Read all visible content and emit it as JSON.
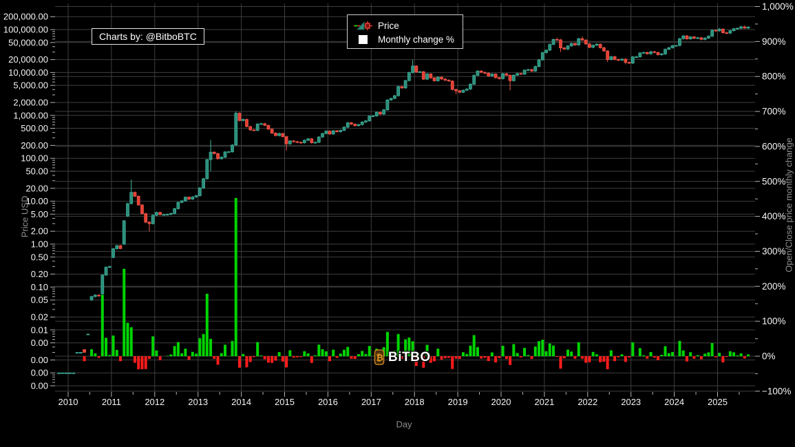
{
  "credit": {
    "text": "Charts by: @BitboBTC"
  },
  "legend": {
    "items": [
      {
        "label": "Price",
        "icon": "candlestick-icon"
      },
      {
        "label": "Monthly change %",
        "icon": "white-square-icon"
      }
    ]
  },
  "watermark": {
    "text": "BiTBO",
    "icon": "bitcoin-badge-icon"
  },
  "colors": {
    "background": "#000000",
    "grid": "#3f3f3f",
    "tick_text": "#f5f5f5",
    "tick_mark": "#b5b5b5",
    "axis_title": "#8f8f8f",
    "candle_up": "#2c8e7b",
    "candle_up_line": "#3fb39c",
    "candle_down": "#e64034",
    "candle_down_line": "#f2584c",
    "bar_up": "#00d400",
    "bar_down": "#ff1c1c",
    "legend_border": "#cfcfcf",
    "watermark_orange": "#e79b23"
  },
  "chart_data": {
    "type": "candlestick+bar",
    "title": "",
    "x_axis": {
      "title": "Day",
      "years": [
        2010,
        2011,
        2012,
        2013,
        2014,
        2015,
        2016,
        2017,
        2018,
        2019,
        2020,
        2021,
        2022,
        2023,
        2024,
        2025
      ]
    },
    "left_axis": {
      "title": "Price USD",
      "scale": "log",
      "ticks": [
        {
          "v": 200000,
          "label": "200,000.00"
        },
        {
          "v": 100000,
          "label": "100,000.00"
        },
        {
          "v": 50000,
          "label": "50,000.00"
        },
        {
          "v": 20000,
          "label": "20,000.00"
        },
        {
          "v": 10000,
          "label": "10,000.00"
        },
        {
          "v": 5000,
          "label": "5,000.00"
        },
        {
          "v": 2000,
          "label": "2,000.00"
        },
        {
          "v": 1000,
          "label": "1,000.00"
        },
        {
          "v": 500,
          "label": "500.00"
        },
        {
          "v": 200,
          "label": "200.00"
        },
        {
          "v": 100,
          "label": "100.00"
        },
        {
          "v": 50,
          "label": "50.00"
        },
        {
          "v": 20,
          "label": "20.00"
        },
        {
          "v": 10,
          "label": "10.00"
        },
        {
          "v": 5,
          "label": "5.00"
        },
        {
          "v": 2,
          "label": "2.00"
        },
        {
          "v": 1,
          "label": "1.00"
        },
        {
          "v": 0.5,
          "label": "0.50"
        },
        {
          "v": 0.2,
          "label": "0.20"
        },
        {
          "v": 0.1,
          "label": "0.10"
        },
        {
          "v": 0.05,
          "label": "0.05"
        },
        {
          "v": 0.02,
          "label": "0.02"
        },
        {
          "v": 0.01,
          "label": "0.01"
        },
        {
          "v": 0.005,
          "label": "0.00"
        },
        {
          "v": 0.002,
          "label": "0.00"
        },
        {
          "v": 0.001,
          "label": "0.00"
        },
        {
          "v": 0.0005,
          "label": "0.00"
        }
      ]
    },
    "right_axis": {
      "title": "Open/Close price monthly change",
      "ticks": [
        {
          "v": 1000,
          "label": "1,000%"
        },
        {
          "v": 900,
          "label": "900%"
        },
        {
          "v": 800,
          "label": "800%"
        },
        {
          "v": 700,
          "label": "700%"
        },
        {
          "v": 600,
          "label": "600%"
        },
        {
          "v": 500,
          "label": "500%"
        },
        {
          "v": 400,
          "label": "400%"
        },
        {
          "v": 300,
          "label": "300%"
        },
        {
          "v": 200,
          "label": "200%"
        },
        {
          "v": 100,
          "label": "100%"
        },
        {
          "v": 0,
          "label": "0%"
        },
        {
          "v": -100,
          "label": "−100%"
        }
      ]
    },
    "series": [
      {
        "name": "Price",
        "type": "candlestick",
        "start_month": "2009-10",
        "closes": [
          0.001,
          0.001,
          0.001,
          0.001,
          0.001,
          0.003,
          0.003,
          0.003,
          0.008,
          0.06,
          0.065,
          0.062,
          0.19,
          0.29,
          0.3,
          0.78,
          0.92,
          0.79,
          3.5,
          8.8,
          16.1,
          13.08,
          8.18,
          5.14,
          3.25,
          3.0,
          4.7,
          5.48,
          4.87,
          4.88,
          4.94,
          5.19,
          6.7,
          9.4,
          10.2,
          12.4,
          11.18,
          12.56,
          13.45,
          20.41,
          33.38,
          93.03,
          139.23,
          128.8,
          97.51,
          106.21,
          141.0,
          141.9,
          204.0,
          1127.45,
          757.5,
          805.94,
          550.0,
          458.79,
          447.61,
          627.91,
          641.11,
          585.84,
          478.69,
          386.94,
          338.32,
          378.05,
          320.19,
          217.46,
          254.26,
          244.22,
          235.94,
          230.23,
          263.07,
          284.65,
          230.06,
          236.06,
          314.17,
          377.32,
          430.57,
          368.77,
          437.7,
          416.73,
          448.32,
          531.39,
          673.33,
          624.68,
          575.47,
          609.74,
          700.97,
          745.69,
          963.74,
          970.4,
          1179.97,
          1071.79,
          1347.89,
          2286.41,
          2480.84,
          2875.34,
          4703.39,
          4360.62,
          6468.4,
          9916.54,
          14156.4,
          10221.1,
          10397.9,
          6973.53,
          9240.55,
          7494.17,
          6404.0,
          7780.44,
          7037.58,
          6625.56,
          6317.61,
          4017.27,
          3742.7,
          3457.79,
          3854.82,
          4105.4,
          5350.73,
          8574.5,
          10817.16,
          10085.63,
          9630.66,
          8308.3,
          9199.58,
          7569.63,
          7193.6,
          9350.53,
          8599.51,
          6438.64,
          8658.55,
          9461.06,
          9137.99,
          11323.47,
          11680.82,
          10784.49,
          13781.0,
          19713.94,
          29001.72,
          33114.36,
          45137.77,
          58918.83,
          57750.18,
          37332.86,
          35040.84,
          41626.2,
          47166.69,
          43790.89,
          61318.96,
          56907.96,
          46306.45,
          38483.13,
          43193.23,
          45538.68,
          37714.88,
          31792.31,
          19985.62,
          23336.9,
          20049.76,
          19431.79,
          20495.77,
          17168.57,
          16547.5,
          23139.28,
          23147.35,
          28478.48,
          29268.81,
          27219.66,
          30477.25,
          29230.11,
          25931.47,
          26967.92,
          34667.78,
          37718.01,
          42265.19,
          42580.0,
          61198.38,
          71333.65,
          60636.86,
          67491.41,
          62678.29,
          64619.25,
          58969.9,
          63329.5,
          70215.19,
          96449.05,
          93429.2,
          102405.0,
          84373.01,
          82548.91,
          94207.31,
          104638.09,
          107135.34,
          115758.2,
          108236.66,
          114000.0
        ],
        "opens_override": {
          "5": 0.003,
          "7": 0.0035,
          "8": 0.008,
          "9": 0.05,
          "12": 0.069,
          "15": 0.49,
          "18": 1.0,
          "19": 4.5
        },
        "highs_override": {
          "20": 31.9,
          "42": 266,
          "49": 1242,
          "98": 19891,
          "138": 64863,
          "145": 69000,
          "173": 73794,
          "183": 109358,
          "189": 123218,
          "190": 124457
        },
        "lows_override": {
          "25": 1.99,
          "42": 50,
          "63": 152,
          "110": 3122,
          "125": 3850,
          "139": 30000,
          "152": 17567,
          "157": 15460
        }
      },
      {
        "name": "Monthly change %",
        "type": "bar",
        "derived": "(close - open) / open * 100"
      }
    ]
  }
}
